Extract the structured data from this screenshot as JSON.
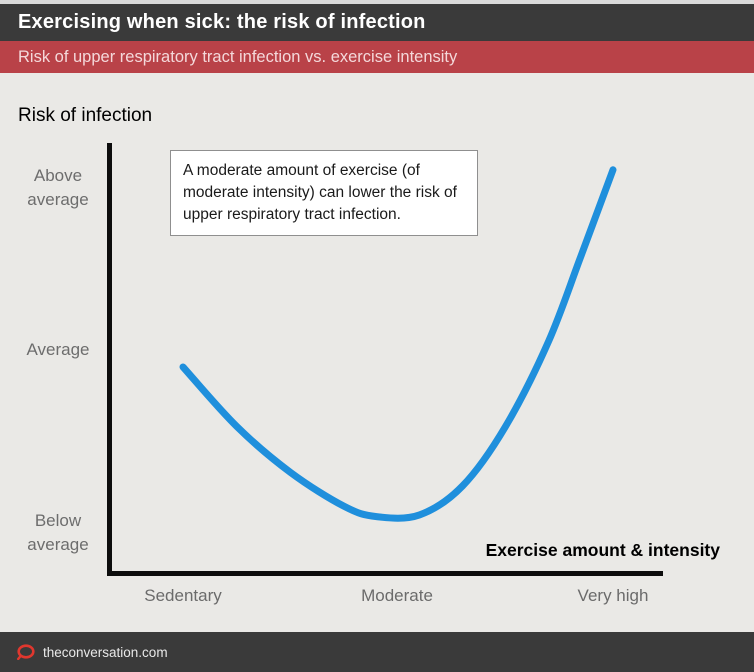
{
  "header": {
    "title": "Exercising when sick: the risk of infection",
    "subtitle": "Risk of upper respiratory tract infection vs. exercise intensity"
  },
  "chart_data": {
    "type": "line",
    "title": "Risk of infection",
    "xlabel": "Exercise amount & intensity",
    "ylabel": "Risk of infection",
    "x_tick_labels": [
      "Sedentary",
      "Moderate",
      "Very high"
    ],
    "y_tick_labels": [
      "Above average",
      "Average",
      "Below average"
    ],
    "y_scale_note": "qualitative: -1 = below average, 0 = average, +1 = above average",
    "series": [
      {
        "name": "Risk of upper respiratory tract infection",
        "x": [
          0,
          0.25,
          0.5,
          0.75,
          0.9,
          1.1,
          1.3,
          1.5,
          1.7,
          1.85,
          2.0
        ],
        "y": [
          -0.1,
          -0.45,
          -0.72,
          -0.92,
          -0.98,
          -0.97,
          -0.8,
          -0.45,
          0.05,
          0.55,
          1.06
        ]
      }
    ],
    "x_categories_positions": {
      "Sedentary": 0,
      "Moderate": 1,
      "Very high": 2
    },
    "annotation": "A moderate amount of exercise (of moderate intensity) can lower the risk of upper respiratory tract infection.",
    "line_color": "#1f8fdc",
    "grid": false,
    "legend": false
  },
  "footer": {
    "site": "theconversation.com"
  },
  "colors": {
    "header_bg": "#3a3a3a",
    "subheader_bg": "#b94248",
    "subheader_text": "#f4d8da",
    "chart_bg": "#eae9e6",
    "axis": "#0d0d0d",
    "curve": "#1f8fdc",
    "tick_text": "#6b6b6b",
    "footer_bg": "#3a3a3a",
    "logo_red": "#e0372e"
  }
}
